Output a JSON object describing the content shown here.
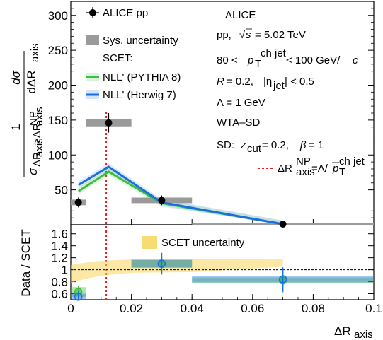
{
  "chart_data": [
    {
      "type": "scatter",
      "panel": "top",
      "ylim": [
        0,
        320
      ],
      "xlim": [
        0,
        0.1
      ],
      "y_ticks": [
        "50",
        "100",
        "150",
        "200",
        "250",
        "300"
      ],
      "y_title_numerator": "dσ",
      "y_title_denominator": "dΔR",
      "y_title_denominator_sub": "axis",
      "y_title_prefix": "1",
      "y_title_prefix_den": "σ",
      "y_title_prefix_den_sub": "ΔR",
      "y_title_prefix_den_sub2": "axis",
      "y_title_prefix_den_sub3": ">ΔR",
      "y_title_prefix_den_sub4": "NP",
      "y_title_prefix_den_sub5": "axis",
      "series": [
        {
          "name": "ALICE pp",
          "x": [
            0.0025,
            0.0125,
            0.03,
            0.07
          ],
          "y": [
            32,
            146,
            35,
            1
          ],
          "y_err": [
            7,
            14,
            7,
            1
          ],
          "x_half_width": [
            0.0025,
            0.0075,
            0.01,
            0.03
          ],
          "sys": [
            4,
            5,
            4,
            1
          ]
        },
        {
          "name": "NLL' (PYTHIA 8)",
          "x": [
            0.0025,
            0.0125,
            0.03,
            0.07
          ],
          "y": [
            48,
            76,
            31,
            1
          ],
          "color": "#3fbf3f"
        },
        {
          "name": "NLL' (Herwig 7)",
          "x": [
            0.0025,
            0.0125,
            0.03,
            0.07
          ],
          "y": [
            57,
            83,
            32,
            1
          ],
          "color": "#1a6fe0"
        }
      ],
      "np_line_x": 0.0117,
      "legend": {
        "alice": "ALICE pp",
        "sys": "Sys. uncertainty",
        "scet": "SCET:",
        "pythia": "NLL' (PYTHIA 8)",
        "herwig": "NLL' (Herwig 7)"
      },
      "annotations": {
        "experiment": "ALICE",
        "energy_prefix": "pp,",
        "energy_sqrt": "s",
        "energy_value": "= 5.02 TeV",
        "pt_left": "80 <",
        "pt_p": "p",
        "pt_sub": "T",
        "pt_sup": "ch jet",
        "pt_right": "< 100 GeV/",
        "pt_c": "c",
        "radius_R": "R",
        "radius_val": "= 0.2,",
        "eta_left": "|η",
        "eta_sub": "jet",
        "eta_right": "| < 0.5",
        "lambda": "Λ = 1 GeV",
        "wta": "WTA–SD",
        "sd_prefix": "SD:",
        "sd_z": "z",
        "sd_z_sub": "cut",
        "sd_rest": "= 0.2,",
        "sd_beta": "β",
        "sd_beta_val": "= 1",
        "np_label_dR": "ΔR",
        "np_label_sup": "NP",
        "np_label_sub": "axis",
        "np_label_eq": "=Λ/",
        "np_label_p": "p",
        "np_label_p_sub": "T",
        "np_label_p_sup": "ch jet"
      },
      "colors": {
        "data": "#000000",
        "sys_box": "#9a9a9a",
        "pythia": "#3fbf3f",
        "herwig": "#1a6fe0",
        "np_line": "#e02020"
      }
    },
    {
      "type": "scatter",
      "panel": "ratio",
      "ylim": [
        0.5,
        1.75
      ],
      "xlim": [
        0,
        0.1
      ],
      "y_ticks": [
        "0.6",
        "0.8",
        "1",
        "1.2",
        "1.4",
        "1.6"
      ],
      "x_ticks": [
        "0",
        "0.02",
        "0.04",
        "0.06",
        "0.08",
        "0.1"
      ],
      "ylabel": "Data / SCET",
      "xlabel_main": "ΔR",
      "xlabel_sub": "axis",
      "scet_band_label": "SCET uncertainty",
      "scet_band": {
        "x": [
          0.0,
          0.005,
          0.01,
          0.02,
          0.04,
          0.07
        ],
        "low": [
          0.78,
          0.85,
          0.9,
          0.95,
          0.96,
          1.05
        ],
        "high": [
          1.08,
          1.12,
          1.15,
          1.17,
          1.18,
          1.17
        ]
      },
      "series": [
        {
          "name": "NLL' (PYTHIA 8)",
          "x": [
            0.0025,
            0.03,
            0.07
          ],
          "y": [
            0.63,
            1.1,
            0.82
          ],
          "y_err": [
            0.1,
            0.18,
            0.2
          ],
          "box_half_height": [
            0.08,
            0.07,
            0.05
          ],
          "color": "#3fbf3f"
        },
        {
          "name": "NLL' (Herwig 7)",
          "x": [
            0.0025,
            0.03,
            0.07
          ],
          "y": [
            0.55,
            1.1,
            0.84
          ],
          "y_err": [
            0.1,
            0.18,
            0.2
          ],
          "box_half_height": [
            0.05,
            0.06,
            0.05
          ],
          "color": "#1a6fe0"
        }
      ],
      "unity_line": 1,
      "np_line_x": 0.0117
    }
  ]
}
